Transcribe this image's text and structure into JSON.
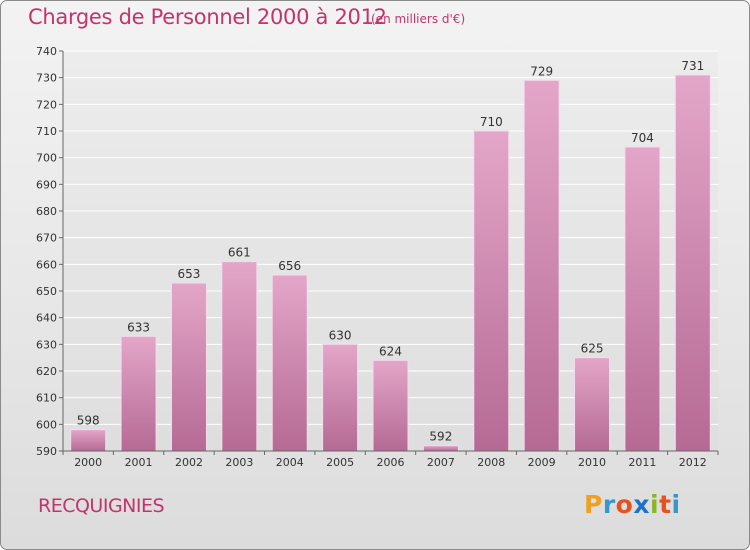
{
  "header": {
    "title": "Charges de Personnel 2000 à 2012",
    "subtitle": "(en milliers d'€)"
  },
  "footer": {
    "place": "RECQUIGNIES",
    "brand": "Proxiti",
    "brand_letters": [
      "P",
      "r",
      "o",
      "x",
      "i",
      "t",
      "i"
    ],
    "brand_colors": [
      "#f0a020",
      "#3399cc",
      "#e8501e",
      "#1e73c8",
      "#88b820",
      "#e8501e",
      "#3399cc"
    ]
  },
  "colors": {
    "bar_top": "#e3a6c8",
    "bar_bottom": "#b56a94",
    "title": "#c0356e"
  },
  "chart_data": {
    "type": "bar",
    "categories": [
      "2000",
      "2001",
      "2002",
      "2003",
      "2004",
      "2005",
      "2006",
      "2007",
      "2008",
      "2009",
      "2010",
      "2011",
      "2012"
    ],
    "values": [
      598,
      633,
      653,
      661,
      656,
      630,
      624,
      592,
      710,
      729,
      625,
      704,
      731
    ],
    "ylim": [
      590,
      740
    ],
    "yticks": [
      590,
      600,
      610,
      620,
      630,
      640,
      650,
      660,
      670,
      680,
      690,
      700,
      710,
      720,
      730,
      740
    ],
    "grid": true,
    "data_labels": true
  }
}
